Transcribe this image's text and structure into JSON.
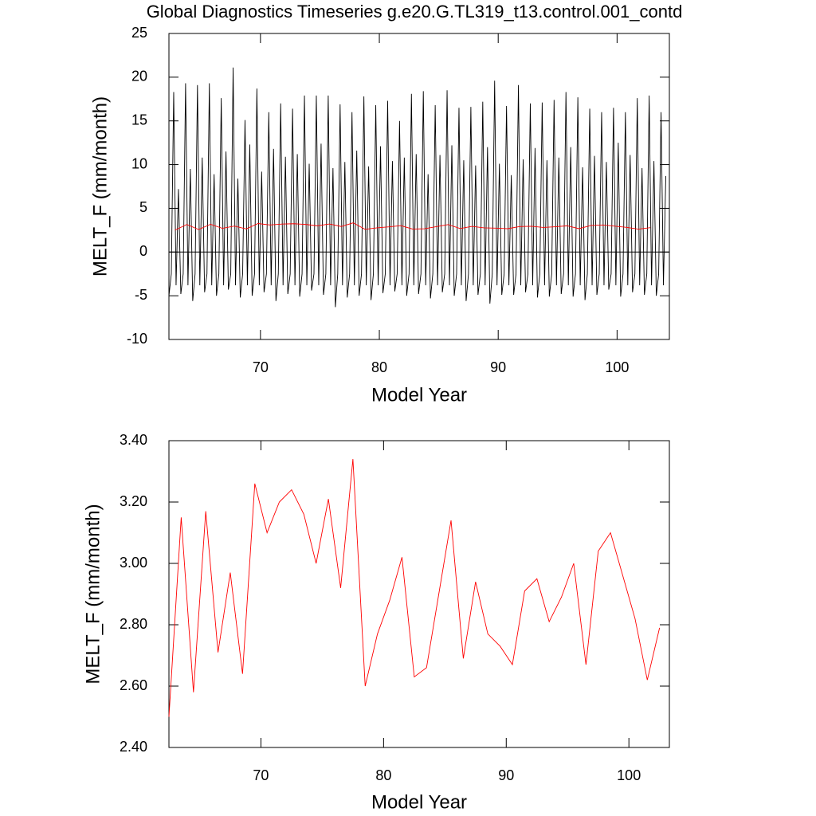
{
  "chart_data": [
    {
      "type": "line",
      "title": "Global Diagnostics Timeseries g.e20.G.TL319_t13.control.001_contd",
      "xlabel": "Model Year",
      "ylabel": "MELT_F (mm/month)",
      "xlim": [
        62.3,
        104.4
      ],
      "ylim": [
        -10,
        25
      ],
      "xticks": [
        70,
        80,
        90,
        100
      ],
      "yticks": [
        -10,
        -5,
        0,
        5,
        10,
        15,
        20,
        25
      ],
      "zero_line": true,
      "series": [
        {
          "color": "#000000",
          "x": [
            62.3,
            62.5,
            62.7,
            62.9,
            63.1,
            63.3,
            63.5,
            63.7,
            63.9,
            64.1,
            64.3,
            64.5,
            64.7,
            64.9,
            65.1,
            65.3,
            65.5,
            65.7,
            65.9,
            66.1,
            66.3,
            66.5,
            66.7,
            66.9,
            67.1,
            67.3,
            67.5,
            67.7,
            67.9,
            68.1,
            68.3,
            68.5,
            68.7,
            68.9,
            69.1,
            69.3,
            69.5,
            69.7,
            69.9,
            70.1,
            70.3,
            70.5,
            70.7,
            70.9,
            71.1,
            71.3,
            71.5,
            71.7,
            71.9,
            72.1,
            72.3,
            72.5,
            72.7,
            72.9,
            73.1,
            73.3,
            73.5,
            73.7,
            73.9,
            74.1,
            74.3,
            74.5,
            74.7,
            74.9,
            75.1,
            75.3,
            75.5,
            75.7,
            75.9,
            76.1,
            76.3,
            76.5,
            76.7,
            76.9,
            77.1,
            77.3,
            77.5,
            77.7,
            77.9,
            78.1,
            78.3,
            78.5,
            78.7,
            78.9,
            79.1,
            79.3,
            79.5,
            79.7,
            79.9,
            80.1,
            80.3,
            80.5,
            80.7,
            80.9,
            81.1,
            81.3,
            81.5,
            81.7,
            81.9,
            82.1,
            82.3,
            82.5,
            82.7,
            82.9,
            83.1,
            83.3,
            83.5,
            83.7,
            83.9,
            84.1,
            84.3,
            84.5,
            84.7,
            84.9,
            85.1,
            85.3,
            85.5,
            85.7,
            85.9,
            86.1,
            86.3,
            86.5,
            86.7,
            86.9,
            87.1,
            87.3,
            87.5,
            87.7,
            87.9,
            88.1,
            88.3,
            88.5,
            88.7,
            88.9,
            89.1,
            89.3,
            89.5,
            89.7,
            89.9,
            90.1,
            90.3,
            90.5,
            90.7,
            90.9,
            91.1,
            91.3,
            91.5,
            91.7,
            91.9,
            92.1,
            92.3,
            92.5,
            92.7,
            92.9,
            93.1,
            93.3,
            93.5,
            93.7,
            93.9,
            94.1,
            94.3,
            94.5,
            94.7,
            94.9,
            95.1,
            95.3,
            95.5,
            95.7,
            95.9,
            96.1,
            96.3,
            96.5,
            96.7,
            96.9,
            97.1,
            97.3,
            97.5,
            97.7,
            97.9,
            98.1,
            98.3,
            98.5,
            98.7,
            98.9,
            99.1,
            99.3,
            99.5,
            99.7,
            99.9,
            100.1,
            100.3,
            100.5,
            100.7,
            100.9,
            101.1,
            101.3,
            101.5,
            101.7,
            101.9,
            102.1,
            102.3,
            102.5,
            102.7,
            102.9,
            103.1,
            103.3,
            103.5,
            103.7,
            103.9,
            104.1
          ],
          "values": [
            -5.0,
            -2.5,
            18.3,
            -3.8,
            7.2,
            -4.8,
            -2.5,
            19.3,
            -3.8,
            9.5,
            -5.6,
            -2.5,
            19.1,
            -3.8,
            10.8,
            -4.6,
            -2.5,
            19.3,
            -3.8,
            8.9,
            -5.0,
            -2.5,
            17.6,
            -3.8,
            11.5,
            -4.3,
            -2.5,
            21.1,
            -3.8,
            8.4,
            -5.2,
            -2.5,
            15.1,
            -3.8,
            12.3,
            -5.0,
            -2.5,
            18.7,
            -3.8,
            9.2,
            -4.6,
            -2.5,
            16.0,
            -3.8,
            11.8,
            -5.6,
            -2.5,
            17.0,
            -3.8,
            10.9,
            -4.8,
            -2.5,
            16.4,
            -3.8,
            11.2,
            -5.1,
            -2.5,
            17.9,
            -3.8,
            10.1,
            -4.4,
            -2.5,
            17.9,
            -3.8,
            12.4,
            -4.9,
            -2.5,
            17.9,
            -3.8,
            9.6,
            -6.3,
            -2.5,
            16.9,
            -3.8,
            10.3,
            -5.2,
            -2.5,
            16.0,
            -3.8,
            11.6,
            -5.0,
            -2.5,
            17.8,
            -3.8,
            9.8,
            -5.5,
            -2.5,
            16.8,
            -3.8,
            12.1,
            -4.7,
            -2.5,
            17.3,
            -3.8,
            10.4,
            -4.5,
            -2.5,
            15.0,
            -3.8,
            10.8,
            -5.0,
            -2.5,
            18.1,
            -3.8,
            11.2,
            -4.8,
            -2.5,
            18.4,
            -3.8,
            8.9,
            -5.3,
            -2.5,
            16.8,
            -3.8,
            11.1,
            -4.6,
            -2.5,
            18.5,
            -3.8,
            12.2,
            -5.0,
            -2.5,
            16.5,
            -3.8,
            10.5,
            -5.6,
            -2.5,
            16.6,
            -3.8,
            9.9,
            -4.9,
            -2.5,
            17.2,
            -3.8,
            12.0,
            -5.9,
            -2.5,
            19.6,
            -3.8,
            10.1,
            -4.9,
            -2.5,
            16.7,
            -3.8,
            8.8,
            -4.9,
            -2.5,
            19.1,
            -3.8,
            10.6,
            -4.6,
            -2.5,
            17.0,
            -3.8,
            11.9,
            -5.2,
            -2.5,
            17.1,
            -3.8,
            10.5,
            -5.1,
            -2.5,
            17.4,
            -3.8,
            10.8,
            -4.8,
            -2.5,
            18.3,
            -3.8,
            12.0,
            -5.1,
            -2.5,
            17.7,
            -3.8,
            9.7,
            -5.5,
            -2.5,
            16.4,
            -3.8,
            11.0,
            -4.9,
            -2.5,
            16.0,
            -3.8,
            10.3,
            -4.3,
            -2.5,
            16.5,
            -3.8,
            12.5,
            -5.1,
            -2.5,
            16.0,
            -3.8,
            11.1,
            -4.6,
            -2.5,
            17.6,
            -3.8,
            9.6,
            -4.9,
            -2.5,
            17.9,
            -3.8,
            10.4,
            -5.0,
            -2.5,
            16.0,
            -3.8,
            8.7
          ]
        },
        {
          "color": "#ff0000",
          "x": [
            62.8,
            63.8,
            64.8,
            65.8,
            66.8,
            67.8,
            68.8,
            69.8,
            70.8,
            71.8,
            72.8,
            73.8,
            74.8,
            75.8,
            76.8,
            77.8,
            78.8,
            79.8,
            80.8,
            81.8,
            82.8,
            83.8,
            84.8,
            85.8,
            86.8,
            87.8,
            88.8,
            89.8,
            90.8,
            91.8,
            92.8,
            93.8,
            94.8,
            95.8,
            96.8,
            97.8,
            98.8,
            99.8,
            100.8,
            101.8,
            102.8
          ],
          "values": [
            2.5,
            3.15,
            2.58,
            3.17,
            2.71,
            2.97,
            2.64,
            3.26,
            3.1,
            3.2,
            3.24,
            3.16,
            3.0,
            3.21,
            2.92,
            3.34,
            2.6,
            2.77,
            2.88,
            3.02,
            2.63,
            2.66,
            2.9,
            3.14,
            2.69,
            2.94,
            2.77,
            2.73,
            2.67,
            2.91,
            2.95,
            2.81,
            2.89,
            3.0,
            2.67,
            3.04,
            3.1,
            2.96,
            2.82,
            2.62,
            2.79
          ]
        }
      ]
    },
    {
      "type": "line",
      "xlabel": "Model Year",
      "ylabel": "MELT_F (mm/month)",
      "xlim": [
        62.5,
        103.3
      ],
      "ylim": [
        2.4,
        3.4
      ],
      "xticks": [
        70,
        80,
        90,
        100
      ],
      "yticks": [
        {
          "value": 2.4,
          "label": "2.40"
        },
        {
          "value": 2.6,
          "label": "2.60"
        },
        {
          "value": 2.8,
          "label": "2.80"
        },
        {
          "value": 3.0,
          "label": "3.00"
        },
        {
          "value": 3.2,
          "label": "3.20"
        },
        {
          "value": 3.4,
          "label": "3.40"
        }
      ],
      "series": [
        {
          "color": "#ff0000",
          "x": [
            62.5,
            63.5,
            64.5,
            65.5,
            66.5,
            67.5,
            68.5,
            69.5,
            70.5,
            71.5,
            72.5,
            73.5,
            74.5,
            75.5,
            76.5,
            77.5,
            78.5,
            79.5,
            80.5,
            81.5,
            82.5,
            83.5,
            84.5,
            85.5,
            86.5,
            87.5,
            88.5,
            89.5,
            90.5,
            91.5,
            92.5,
            93.5,
            94.5,
            95.5,
            96.5,
            97.5,
            98.5,
            99.5,
            100.5,
            101.5,
            102.5
          ],
          "values": [
            2.5,
            3.15,
            2.58,
            3.17,
            2.71,
            2.97,
            2.64,
            3.26,
            3.1,
            3.2,
            3.24,
            3.16,
            3.0,
            3.21,
            2.92,
            3.34,
            2.6,
            2.77,
            2.88,
            3.02,
            2.63,
            2.66,
            2.9,
            3.14,
            2.69,
            2.94,
            2.77,
            2.73,
            2.67,
            2.91,
            2.95,
            2.81,
            2.89,
            3.0,
            2.67,
            3.04,
            3.1,
            2.96,
            2.82,
            2.62,
            2.79
          ]
        }
      ]
    }
  ]
}
